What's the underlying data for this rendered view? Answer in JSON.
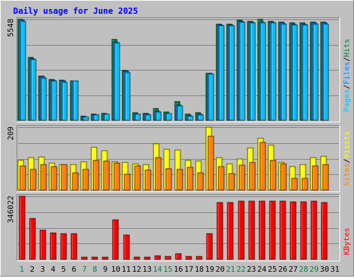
{
  "chart_data": {
    "type": "bar",
    "title": "Daily usage for June 2025",
    "categories": [
      "1",
      "2",
      "3",
      "4",
      "5",
      "6",
      "7",
      "8",
      "9",
      "10",
      "11",
      "12",
      "13",
      "14",
      "15",
      "16",
      "17",
      "18",
      "19",
      "20",
      "21",
      "22",
      "23",
      "24",
      "25",
      "26",
      "27",
      "28",
      "29",
      "30",
      "31"
    ],
    "weekend_days": [
      "1",
      "7",
      "8",
      "14",
      "15",
      "21",
      "22",
      "28",
      "29"
    ],
    "panels": [
      {
        "id": "hits-files-pages",
        "ymax_label": "5548",
        "ymax": 5548,
        "legend": [
          "Pages",
          "/",
          "Files",
          "/",
          "Hits"
        ],
        "series": [
          {
            "name": "Hits",
            "color": "#008040",
            "values": [
              5548,
              3460,
              2430,
              2250,
              2200,
              2150,
              230,
              350,
              370,
              4430,
              2740,
              400,
              370,
              640,
              460,
              1030,
              350,
              410,
              2600,
              5300,
              5300,
              5500,
              5450,
              5550,
              5450,
              5400,
              5350,
              5350,
              5400,
              5400,
              null
            ]
          },
          {
            "name": "Files",
            "color": "#0080ff",
            "values": [
              5500,
              3400,
              2380,
              2200,
              2150,
              2150,
              200,
              320,
              340,
              4300,
              2680,
              350,
              340,
              480,
              390,
              830,
              270,
              330,
              2600,
              5250,
              5250,
              5450,
              5400,
              5400,
              5400,
              5350,
              5300,
              5300,
              5350,
              5350,
              null
            ]
          },
          {
            "name": "Pages",
            "color": "#00c0ff",
            "values": [
              5450,
              3350,
              2330,
              2150,
              2100,
              2150,
              180,
              300,
              330,
              4250,
              2630,
              330,
              320,
              450,
              380,
              780,
              240,
              310,
              2550,
              5200,
              5200,
              5400,
              5350,
              5350,
              5350,
              5300,
              5250,
              5250,
              5300,
              5300,
              null
            ]
          }
        ]
      },
      {
        "id": "visits-sites",
        "ymax_label": "209",
        "ymax": 209,
        "legend": [
          "Sites",
          "/",
          "Visits"
        ],
        "series": [
          {
            "name": "Visits",
            "color": "#ffff00",
            "values": [
              98,
              107,
              111,
              90,
              86,
              84,
              94,
              143,
              131,
              94,
              93,
              88,
              85,
              155,
              135,
              133,
              98,
              96,
              209,
              108,
              87,
              103,
              140,
              172,
              149,
              93,
              78,
              85,
              109,
              112,
              null
            ]
          },
          {
            "name": "Sites",
            "color": "#ff8000",
            "values": [
              81,
              68,
              86,
              77,
              85,
              57,
              69,
              98,
              96,
              90,
              53,
              81,
              67,
              108,
              71,
              69,
              75,
              57,
              180,
              79,
              56,
              83,
              92,
              158,
              99,
              87,
              39,
              40,
              80,
              84,
              null
            ]
          }
        ]
      },
      {
        "id": "kbytes",
        "ymax_label": "346022",
        "ymax": 346022,
        "legend": [
          "KBytes"
        ],
        "series": [
          {
            "name": "KBytes",
            "color": "#ff0000",
            "values": [
              346022,
              226000,
              160000,
              146000,
              142000,
              142000,
              12000,
              12000,
              12000,
              218000,
              134000,
              12000,
              12000,
              20000,
              16000,
              32000,
              16000,
              16000,
              140000,
              313000,
              313000,
              320000,
              320000,
              320000,
              318000,
              318000,
              315000,
              315000,
              318000,
              313000,
              null
            ]
          }
        ]
      }
    ]
  }
}
